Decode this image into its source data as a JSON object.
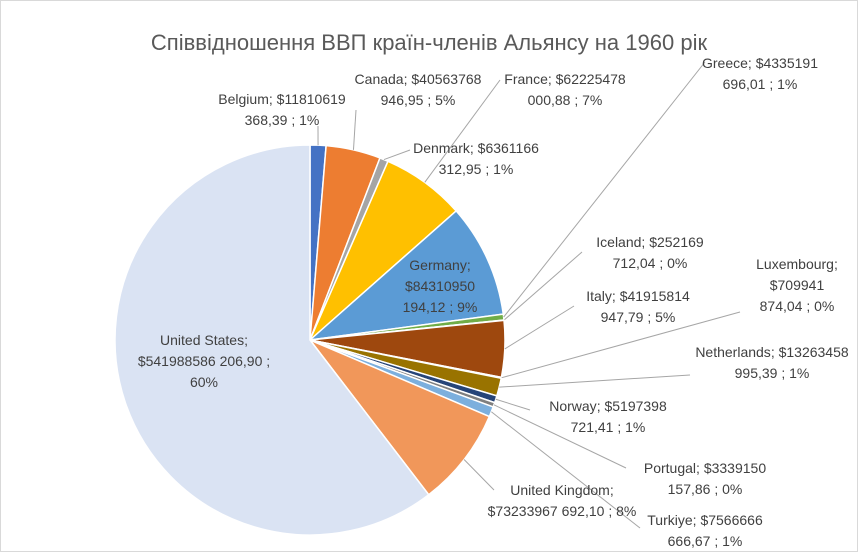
{
  "chart_data": {
    "type": "pie",
    "title": "Співвідношення ВВП країн-членів Альянсу на 1960 рік",
    "separator": ";",
    "categories": [
      "Belgium",
      "Canada",
      "Denmark",
      "France",
      "Germany",
      "Greece",
      "Iceland",
      "Italy",
      "Luxembourg",
      "Netherlands",
      "Norway",
      "Portugal",
      "Turkiye",
      "United Kingdom",
      "United States"
    ],
    "values": [
      11810619368.39,
      40563768946.95,
      6361166312.95,
      62225478000.88,
      84310950194.12,
      4335191696.01,
      252169712.04,
      41915814947.79,
      709941874.04,
      13263458995.39,
      5197398721.41,
      3339150157.86,
      7566666666.67,
      73233967692.1,
      541988586206.9
    ],
    "value_labels": [
      "$11810619 368,39",
      "$40563768 946,95",
      "$6361166 312,95",
      "$62225478 000,88",
      "$84310950 194,12",
      "$4335191 696,01",
      "$252169 712,04",
      "$41915814 947,79",
      "$709941 874,04",
      "$13263458 995,39",
      "$5197398 721,41",
      "$3339150 157,86",
      "$7566666 666,67",
      "$73233967 692,10",
      "$541988586 206,90"
    ],
    "percents": [
      1,
      5,
      1,
      7,
      9,
      1,
      0,
      5,
      0,
      1,
      1,
      0,
      1,
      8,
      60
    ],
    "percent_labels": [
      "1%",
      "5%",
      "1%",
      "7%",
      "9%",
      "1%",
      "0%",
      "5%",
      "0%",
      "1%",
      "1%",
      "0%",
      "1%",
      "8%",
      "60%"
    ],
    "colors": [
      "#4472c4",
      "#ed7d31",
      "#a5a5a5",
      "#ffc000",
      "#5b9bd5",
      "#70ad47",
      "#5a9e3a",
      "#9e480e",
      "#636363",
      "#997300",
      "#264478",
      "#7f7f7f",
      "#7cafdd",
      "#f1975a",
      "#dae3f3"
    ]
  }
}
